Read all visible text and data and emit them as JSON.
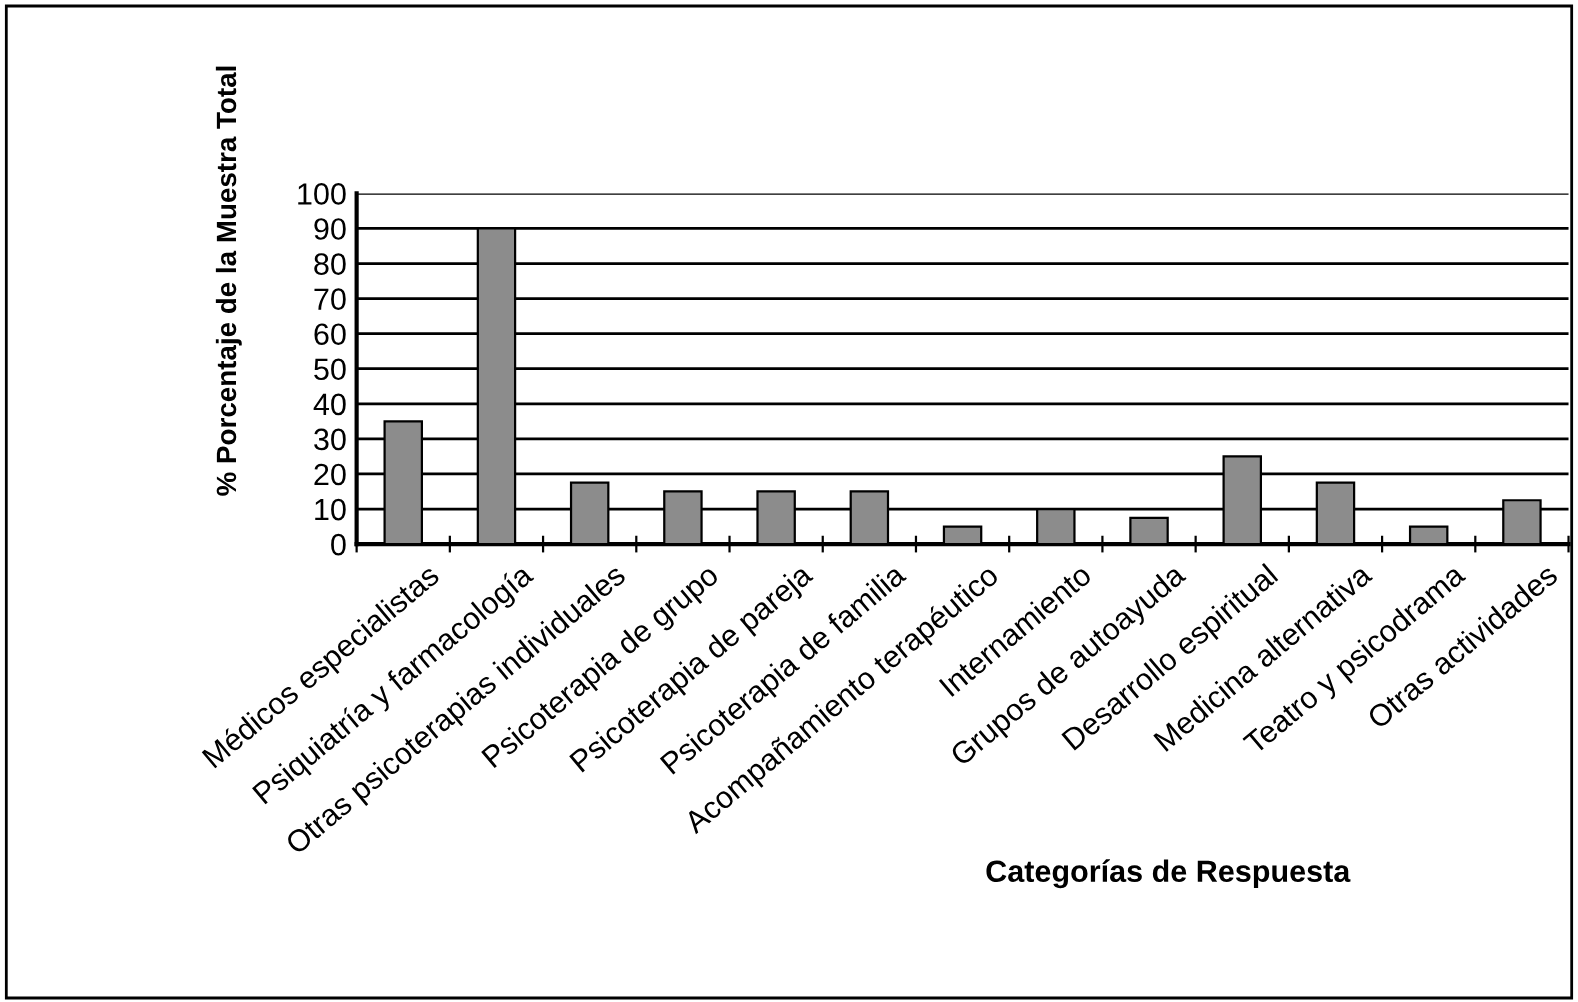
{
  "chart_data": {
    "type": "bar",
    "categories": [
      "Médicos especialistas",
      "Psiquiatría y farmacología",
      "Otras psicoterapias individuales",
      "Psicoterapia de grupo",
      "Psicoterapia de pareja",
      "Psicoterapia de familia",
      "Acompañamiento terapéutico",
      "Internamiento",
      "Grupos de autoayuda",
      "Desarrollo espiritual",
      "Medicina alternativa",
      "Teatro y psicodrama",
      "Otras actividades"
    ],
    "values": [
      35,
      90,
      17.5,
      15,
      15,
      15,
      5,
      10,
      7.5,
      25,
      17.5,
      5,
      12.5
    ],
    "color": "#8c8c8c",
    "xlabel": "Categorías de Respuesta",
    "ylabel": "% Porcentaje de la Muestra Total",
    "ylim": [
      0,
      100
    ],
    "yticks": [
      0,
      10,
      20,
      30,
      40,
      50,
      60,
      70,
      80,
      90,
      100
    ],
    "grid": "y",
    "legend": false
  }
}
